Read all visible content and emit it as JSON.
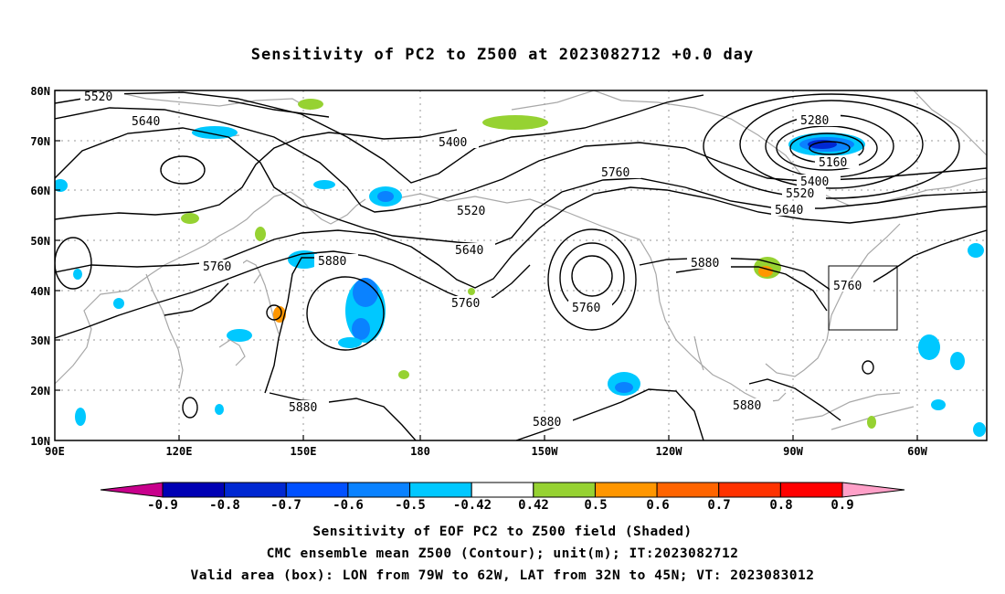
{
  "title": "Sensitivity of PC2 to Z500 at 2023082712 +0.0 day",
  "map": {
    "lat_ticks": [
      "80N",
      "70N",
      "60N",
      "50N",
      "40N",
      "30N",
      "20N",
      "10N"
    ],
    "lon_ticks": [
      "90E",
      "120E",
      "150E",
      "180",
      "150W",
      "120W",
      "90W",
      "60W"
    ],
    "contour_labels": [
      "5520",
      "5640",
      "5400",
      "5280",
      "5160",
      "5400",
      "5520",
      "5640",
      "5760",
      "5520",
      "5640",
      "5760",
      "5760",
      "5880",
      "5760",
      "5880",
      "5880",
      "5880",
      "5880",
      "5760",
      "5880"
    ],
    "valid_box": {
      "lon_from": "79W",
      "lon_to": "62W",
      "lat_from": "32N",
      "lat_to": "45N"
    }
  },
  "colorbar": {
    "labels": [
      "-0.9",
      "-0.8",
      "-0.7",
      "-0.6",
      "-0.5",
      "-0.42",
      "0.42",
      "0.5",
      "0.6",
      "0.7",
      "0.8",
      "0.9"
    ],
    "colors": [
      "#c8008c",
      "#0000b4",
      "#0028d2",
      "#0050ff",
      "#0a82ff",
      "#00c8ff",
      "#ffffff",
      "#96d232",
      "#ff9600",
      "#ff6400",
      "#ff3200",
      "#ff0000",
      "#ffa0c8"
    ]
  },
  "footer": {
    "line1": "Sensitivity of EOF PC2 to Z500 field (Shaded)",
    "line2": "CMC ensemble mean Z500 (Contour); unit(m); IT:2023082712",
    "line3": "Valid area (box): LON from 79W to 62W, LAT from 32N to 45N; VT: 2023083012"
  }
}
